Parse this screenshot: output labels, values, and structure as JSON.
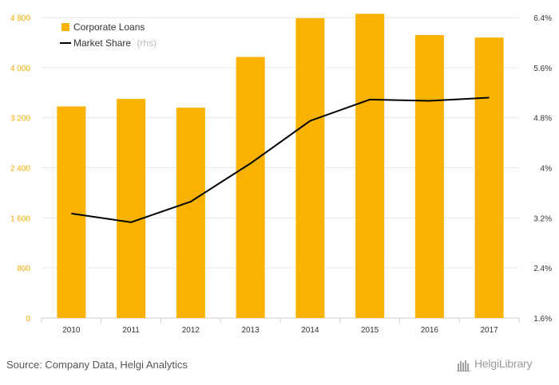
{
  "chart_data": {
    "type": "bar",
    "categories": [
      "2010",
      "2011",
      "2012",
      "2013",
      "2014",
      "2015",
      "2016",
      "2017"
    ],
    "series": [
      {
        "name": "Corporate Loans",
        "type": "bar",
        "axis": "left",
        "values": [
          3380,
          3500,
          3360,
          4170,
          4790,
          4860,
          4520,
          4480
        ]
      },
      {
        "name": "Market Share",
        "type": "line",
        "axis": "right",
        "values": [
          3.27,
          3.13,
          3.46,
          4.07,
          4.75,
          5.09,
          5.07,
          5.12
        ]
      }
    ],
    "left_axis": {
      "min": 0,
      "max": 4800,
      "ticks": [
        "0",
        "800",
        "1 600",
        "2 400",
        "3 200",
        "4 000",
        "4 800"
      ]
    },
    "right_axis": {
      "min": 1.6,
      "max": 6.4,
      "ticks": [
        "1.6%",
        "2.4%",
        "3.2%",
        "4%",
        "4.8%",
        "5.6%",
        "6.4%"
      ]
    },
    "legend": {
      "entries": [
        "Corporate Loans",
        "Market Share"
      ],
      "rhs_note": "(rhs)",
      "placement": "top-left"
    },
    "colors": {
      "bar": "#f9b200",
      "line": "#000000",
      "left_ticks": "#f0ad00",
      "grid": "#e6e6e6"
    },
    "grid": true
  },
  "footer": {
    "source": "Source: Company Data, Helgi Analytics",
    "logo": "HelgiLibrary"
  }
}
